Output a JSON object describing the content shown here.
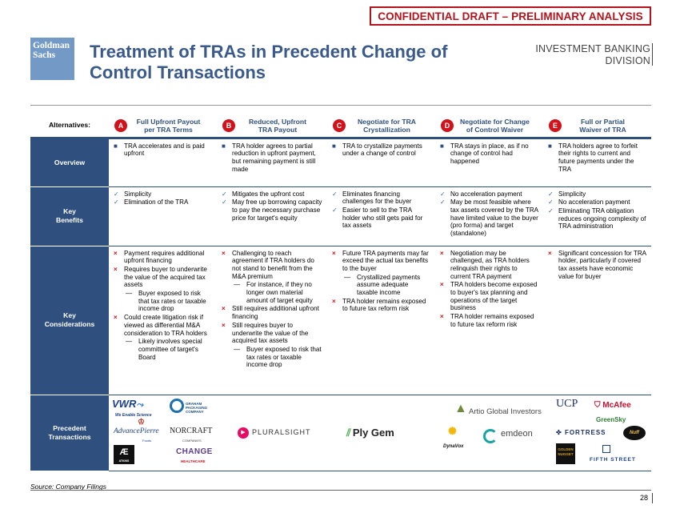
{
  "banner": "CONFIDENTIAL DRAFT – PRELIMINARY ANALYSIS",
  "logo": {
    "line1": "Goldman",
    "line2": "Sachs"
  },
  "title": "Treatment of TRAs in Precedent Change of Control Transactions",
  "division": {
    "line1": "INVESTMENT BANKING",
    "line2": "DIVISION"
  },
  "table": {
    "alternatives_label": "Alternatives:",
    "columns": [
      {
        "badge": "A",
        "line1": "Full Upfront Payout",
        "line2": "per TRA Terms"
      },
      {
        "badge": "B",
        "line1": "Reduced, Upfront",
        "line2": "TRA Payout"
      },
      {
        "badge": "C",
        "line1": "Negotiate for TRA",
        "line2": "Crystallization"
      },
      {
        "badge": "D",
        "line1": "Negotiate for Change",
        "line2": "of Control Waiver"
      },
      {
        "badge": "E",
        "line1": "Full or Partial",
        "line2": "Waiver of TRA"
      }
    ],
    "overview": {
      "label": "Overview",
      "cells": [
        [
          "TRA accelerates and is paid upfront"
        ],
        [
          "TRA holder agrees to partial reduction in upfront payment, but remaining payment is still made"
        ],
        [
          "TRA to crystallize payments under a change of control"
        ],
        [
          "TRA stays in place, as if no change of control had happened"
        ],
        [
          "TRA holders agree to forfeit their rights to current and future payments under the TRA"
        ]
      ]
    },
    "benefits": {
      "label_line1": "Key",
      "label_line2": "Benefits",
      "cells": [
        [
          "Simplicity",
          "Elimination of the TRA"
        ],
        [
          "Mitigates the upfront cost",
          "May free up borrowing capacity to pay the necessary purchase price for target's equity"
        ],
        [
          "Eliminates financing challenges for the buyer",
          "Easier to sell to the TRA holder who still gets paid for tax assets"
        ],
        [
          "No acceleration payment",
          "May be most feasible where tax assets covered by the TRA have limited value to the buyer (pro forma) and target (standalone)"
        ],
        [
          "Simplicity",
          "No acceleration payment",
          "Eliminating TRA obligation reduces ongoing complexity of TRA administration"
        ]
      ]
    },
    "considerations": {
      "label_line1": "Key",
      "label_line2": "Considerations",
      "cells": [
        [
          {
            "text": "Payment requires additional upfront financing",
            "sub": []
          },
          {
            "text": "Requires buyer to underwrite the value of the acquired tax assets",
            "sub": [
              "Buyer exposed to risk that tax rates or taxable income drop"
            ]
          },
          {
            "text": "Could create litigation risk if viewed as differential M&A consideration to TRA holders",
            "sub": [
              "Likely involves special committee of target's Board"
            ]
          }
        ],
        [
          {
            "text": "Challenging to reach agreement if TRA holders do not stand to benefit from the M&A premium",
            "sub": [
              "For instance, if they no longer own material amount of target equity"
            ]
          },
          {
            "text": "Still requires additional upfront financing",
            "sub": []
          },
          {
            "text": "Still requires buyer to underwrite the value of the acquired tax assets",
            "sub": [
              "Buyer exposed to risk that tax rates or taxable income drop"
            ]
          }
        ],
        [
          {
            "text": "Future TRA payments may far exceed the actual tax benefits to the buyer",
            "sub": [
              "Crystallized payments assume adequate taxable income"
            ]
          },
          {
            "text": "TRA holder remains exposed to future tax reform risk",
            "sub": []
          }
        ],
        [
          {
            "text": "Negotiation may be challenged, as TRA holders relinquish their rights to current TRA payment",
            "sub": []
          },
          {
            "text": "TRA holders become exposed to buyer's tax planning and operations of the target business",
            "sub": []
          },
          {
            "text": "TRA holder remains exposed to future tax reform risk",
            "sub": []
          }
        ],
        [
          {
            "text": "Significant concession for TRA holder, particularly if covered tax assets have economic value for buyer",
            "sub": []
          }
        ]
      ]
    },
    "precedents": {
      "label_line1": "Precedent",
      "label_line2": "Transactions",
      "logos": {
        "vwr": "VWR",
        "vwr_tag": "We Enable Science",
        "graham": "GRAHAM PACKAGING COMPANY",
        "advancepierre": "AdvancePierre",
        "advancepierre_sub": "Foods",
        "norcraft": "NORCRAFT",
        "norcraft_sub": "COMPANIES",
        "atkins": "ATKINS",
        "change": "CHANGE",
        "change_sub": "HEALTHCARE",
        "pluralsight": "PLURALSIGHT",
        "plygem": "Ply Gem",
        "artio": "Artio Global Investors",
        "dynavox": "DynaVox",
        "emdeon": "emdeon",
        "ucp": "UCP",
        "mcafee": "McAfee",
        "greensky": "GreenSky",
        "fortress": "FORTRESS",
        "nuff": "Nuff",
        "golden": "GOLDEN NUGGET",
        "fifth": "FIFTH STREET"
      }
    }
  },
  "source": "Source: Company Filings",
  "page_number": "28",
  "colors": {
    "navy": "#2f4f7f",
    "red": "#d0121b",
    "title_blue": "#3a5a8c",
    "logo_blue": "#7399c6"
  }
}
